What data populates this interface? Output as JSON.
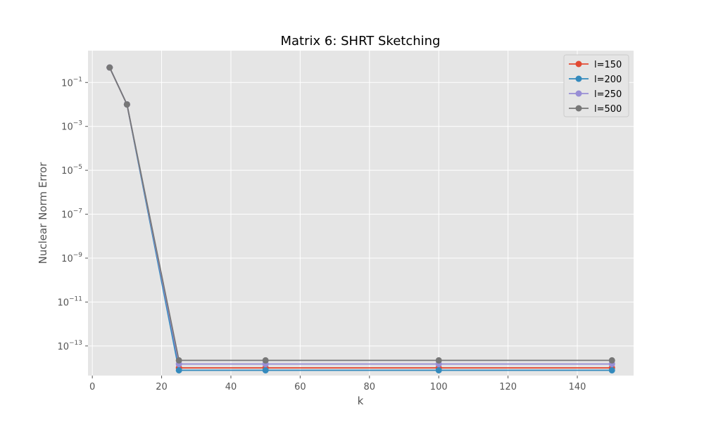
{
  "chart_data": {
    "type": "line",
    "title": "Matrix 6: SHRT Sketching",
    "xlabel": "k",
    "ylabel": "Nuclear Norm Error",
    "yscale": "log",
    "xlim": [
      -1.25,
      156.25
    ],
    "ylim_log10": [
      -14.35,
      0.45
    ],
    "x_ticks": [
      0,
      20,
      40,
      60,
      80,
      100,
      120,
      140
    ],
    "x_tick_labels": [
      "0",
      "20",
      "40",
      "60",
      "80",
      "100",
      "120",
      "140"
    ],
    "y_ticks_log10": [
      -13,
      -11,
      -9,
      -7,
      -5,
      -3,
      -1
    ],
    "y_tick_labels": [
      {
        "base": "10",
        "exp": "−13"
      },
      {
        "base": "10",
        "exp": "−11"
      },
      {
        "base": "10",
        "exp": "−9"
      },
      {
        "base": "10",
        "exp": "−7"
      },
      {
        "base": "10",
        "exp": "−5"
      },
      {
        "base": "10",
        "exp": "−3"
      },
      {
        "base": "10",
        "exp": "−1"
      }
    ],
    "grid": true,
    "legend_position": "top-right",
    "x": [
      5,
      10,
      25,
      50,
      100,
      150
    ],
    "series": [
      {
        "name": "l=150",
        "color": "#E24A33",
        "values": [
          0.48,
          0.01,
          1e-14,
          1e-14,
          1e-14,
          1e-14
        ]
      },
      {
        "name": "l=200",
        "color": "#348ABD",
        "values": [
          0.48,
          0.01,
          7.8e-15,
          7.8e-15,
          7.8e-15,
          7.8e-15
        ]
      },
      {
        "name": "l=250",
        "color": "#988ED5",
        "values": [
          0.48,
          0.01,
          1.5e-14,
          1.5e-14,
          1.5e-14,
          1.5e-14
        ]
      },
      {
        "name": "l=500",
        "color": "#777777",
        "values": [
          0.48,
          0.01,
          2.2e-14,
          2.2e-14,
          2.2e-14,
          2.2e-14
        ]
      }
    ]
  },
  "colors": {
    "plot_background": "#E5E5E5",
    "grid": "#FFFFFF"
  }
}
